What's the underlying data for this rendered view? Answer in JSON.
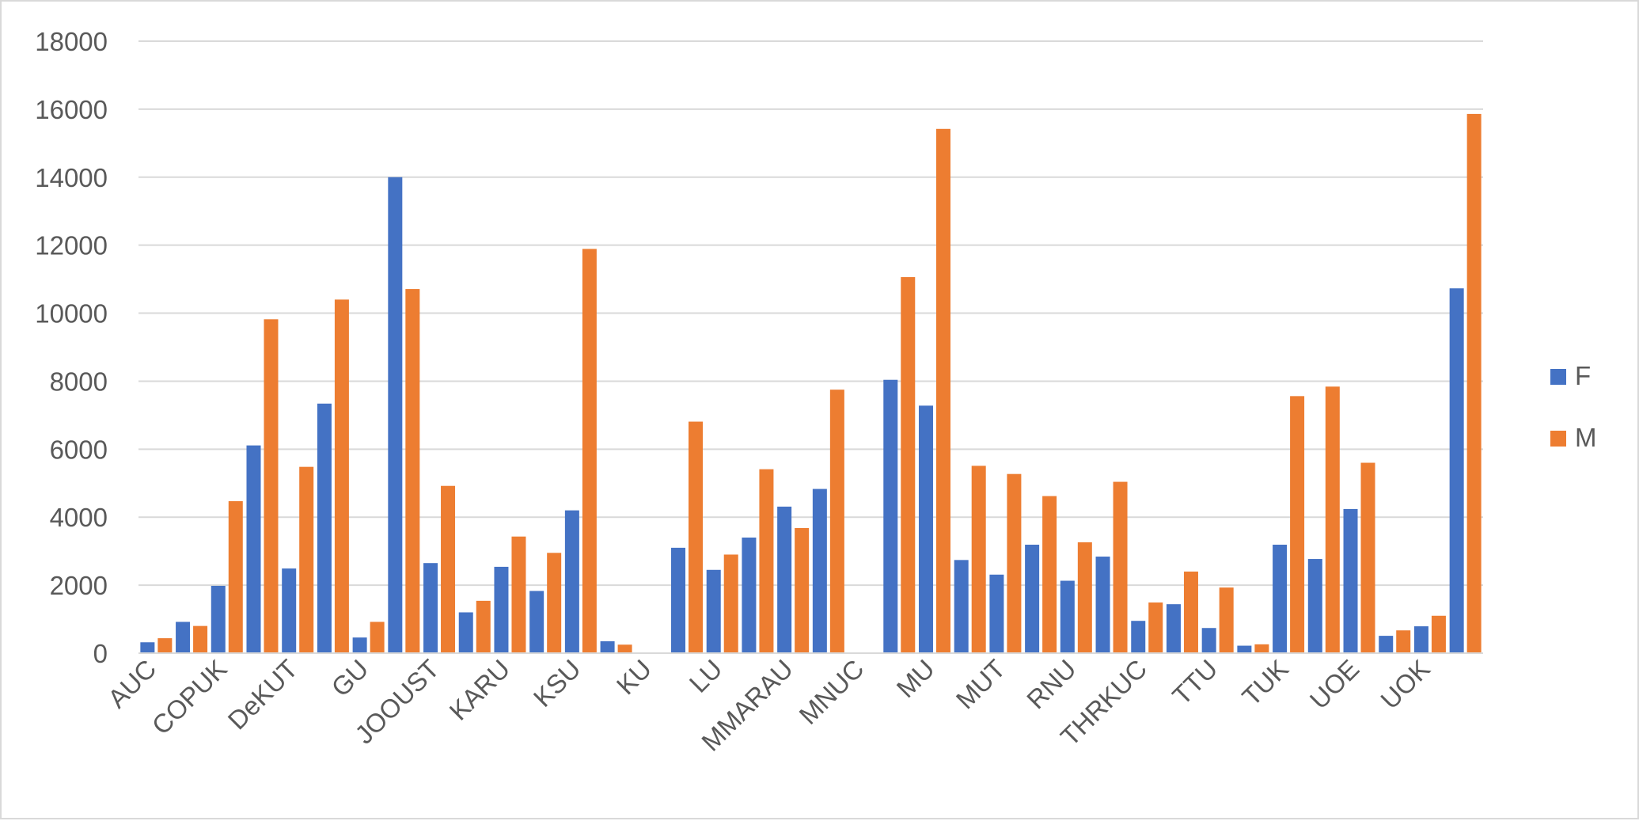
{
  "chart_data": {
    "type": "bar",
    "title": "",
    "xlabel": "",
    "ylabel": "",
    "ylim": [
      0,
      18000
    ],
    "yticks": [
      0,
      2000,
      4000,
      6000,
      8000,
      10000,
      12000,
      14000,
      16000,
      18000
    ],
    "grid": true,
    "legend_position": "right",
    "categories": [
      "AUC",
      "",
      "COPUK",
      "",
      "DeKUT",
      "",
      "GU",
      "",
      "JOOUST",
      "",
      "KARU",
      "",
      "KSU",
      "",
      "KU",
      "",
      "LU",
      "",
      "MMARAU",
      "",
      "MNUC",
      "",
      "MU",
      "",
      "MUT",
      "",
      "RNU",
      "",
      "THRKUC",
      "",
      "TTU",
      "",
      "TUK",
      "",
      "UOE",
      "",
      "UOK",
      ""
    ],
    "series": [
      {
        "name": "F",
        "color": "#4472C4",
        "values": [
          320,
          920,
          1980,
          6110,
          2490,
          7340,
          460,
          14000,
          2650,
          1200,
          2540,
          1830,
          4200,
          350,
          0,
          3100,
          2450,
          3400,
          4310,
          4830,
          0,
          8040,
          7280,
          2740,
          2310,
          3190,
          2130,
          2840,
          950,
          1440,
          740,
          220,
          3190,
          2770,
          4240,
          510,
          790,
          10730
        ]
      },
      {
        "name": "M",
        "color": "#ED7D31",
        "values": [
          440,
          800,
          4470,
          9820,
          5480,
          10400,
          920,
          10710,
          4920,
          1540,
          3430,
          2950,
          11890,
          250,
          0,
          6810,
          2900,
          5410,
          3680,
          7750,
          0,
          11060,
          15420,
          5510,
          5270,
          4620,
          3260,
          5040,
          1490,
          2400,
          1930,
          260,
          7560,
          7840,
          5600,
          670,
          1100,
          15860
        ]
      }
    ]
  }
}
